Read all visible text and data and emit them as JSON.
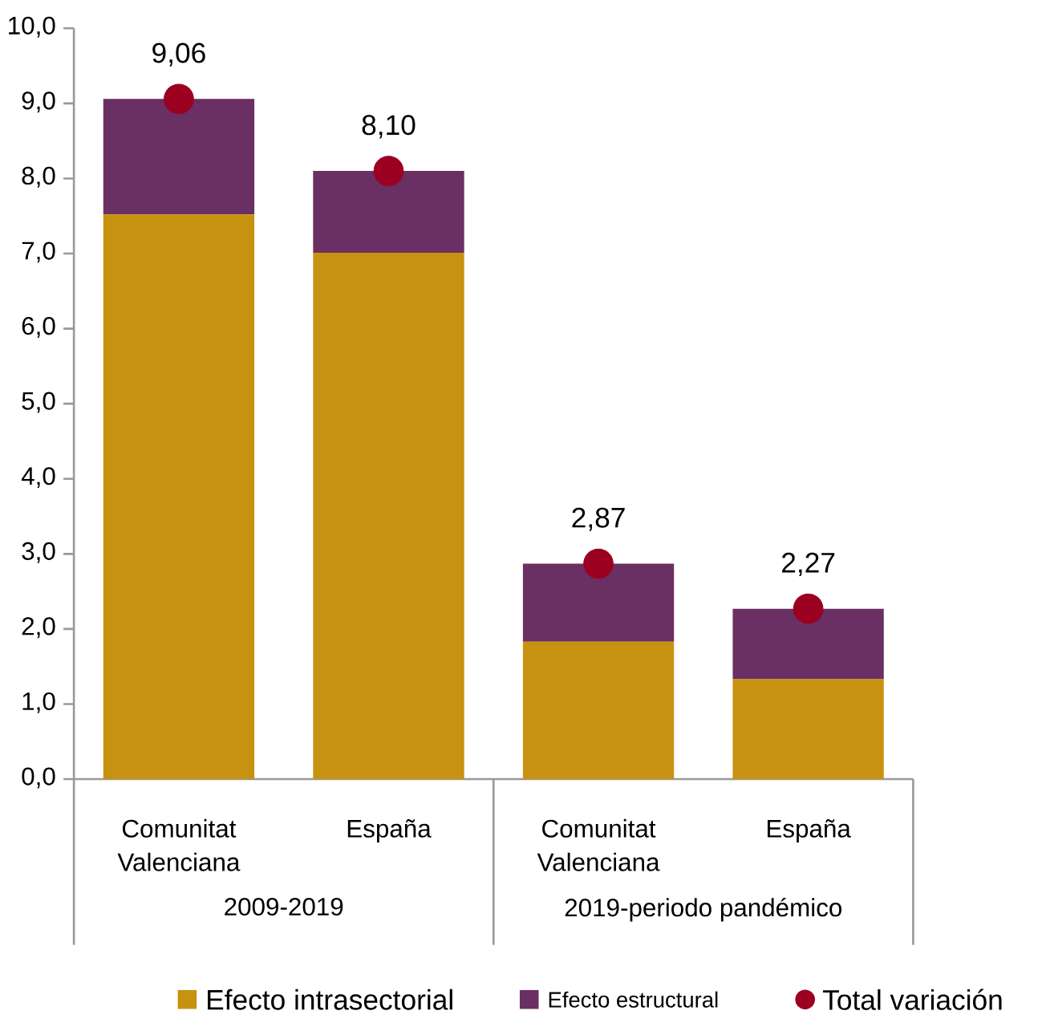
{
  "chart_data": {
    "type": "bar",
    "stacked": true,
    "legend": "bottom",
    "categories": [
      "Comunitat Valenciana",
      "España",
      "Comunitat Valenciana",
      "España"
    ],
    "annotations": [
      "2009-2019",
      "2019-periodo pandémico"
    ],
    "ylim": [
      0,
      10
    ],
    "yticks": [
      {
        "value": 0,
        "label": "0,0"
      },
      {
        "value": 1,
        "label": "1,0"
      },
      {
        "value": 2,
        "label": "2,0"
      },
      {
        "value": 3,
        "label": "3,0"
      },
      {
        "value": 4,
        "label": "4,0"
      },
      {
        "value": 5,
        "label": "5,0"
      },
      {
        "value": 6,
        "label": "6,0"
      },
      {
        "value": 7,
        "label": "7,0"
      },
      {
        "value": 8,
        "label": "8,0"
      },
      {
        "value": 9,
        "label": "9,0"
      },
      {
        "value": 10,
        "label": "10,0"
      }
    ],
    "series": [
      {
        "name": "Efecto intrasectorial",
        "color": "#c89211",
        "values": [
          7.52,
          7.01,
          1.83,
          1.33
        ]
      },
      {
        "name": "Efecto estructural",
        "color": "#6a2f63",
        "values": [
          1.54,
          1.09,
          1.04,
          0.94
        ]
      },
      {
        "name": "Total variación",
        "type": "scatter",
        "marker": "circle",
        "color": "#9b0020",
        "values": [
          9.06,
          8.1,
          2.87,
          2.27
        ],
        "value_labels": [
          "9,06",
          "8,10",
          "2,87",
          "2,27"
        ]
      }
    ]
  }
}
